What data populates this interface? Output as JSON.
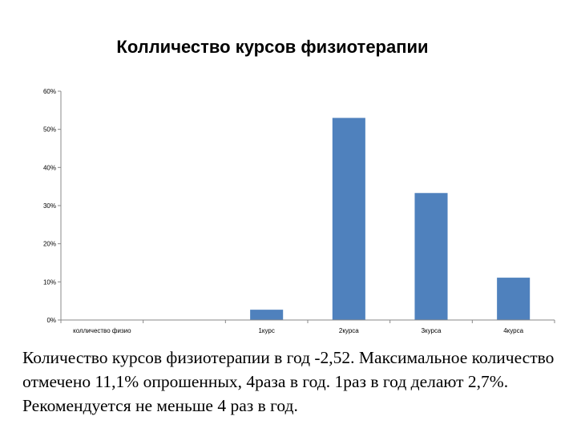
{
  "chart_data": {
    "type": "bar",
    "title": "Колличество курсов физиотерапии",
    "categories": [
      "колличество физио",
      "",
      "1курс",
      "2курса",
      "3курса",
      "4курса"
    ],
    "values": [
      0,
      0,
      2.7,
      53,
      33.3,
      11.1
    ],
    "ylim": [
      0,
      60
    ],
    "yticks": [
      "0%",
      "10%",
      "20%",
      "30%",
      "40%",
      "50%",
      "60%"
    ],
    "bar_color": "#4f81bd",
    "grid": false,
    "legend": "none"
  },
  "caption": "Количество курсов физиотерапии в год -2,52. Максимальное количество отмечено 11,1% опрошенных, 4раза в год. 1раз в год делают 2,7%. Рекомендуется не меньше 4 раз в год."
}
